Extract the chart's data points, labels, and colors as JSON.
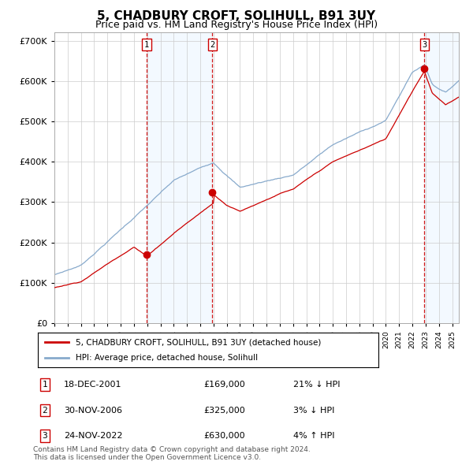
{
  "title": "5, CHADBURY CROFT, SOLIHULL, B91 3UY",
  "subtitle": "Price paid vs. HM Land Registry's House Price Index (HPI)",
  "ylim": [
    0,
    720000
  ],
  "yticks": [
    0,
    100000,
    200000,
    300000,
    400000,
    500000,
    600000,
    700000
  ],
  "ytick_labels": [
    "£0",
    "£100K",
    "£200K",
    "£300K",
    "£400K",
    "£500K",
    "£600K",
    "£700K"
  ],
  "sale_prices": [
    169000,
    325000,
    630000
  ],
  "sale_labels": [
    "1",
    "2",
    "3"
  ],
  "sale_date_strs": [
    "18-DEC-2001",
    "30-NOV-2006",
    "24-NOV-2022"
  ],
  "sale_hpi_pct": [
    "21% ↓ HPI",
    "3% ↓ HPI",
    "4% ↑ HPI"
  ],
  "sale_years": [
    2001.96,
    2006.92,
    2022.9
  ],
  "legend_entries": [
    "5, CHADBURY CROFT, SOLIHULL, B91 3UY (detached house)",
    "HPI: Average price, detached house, Solihull"
  ],
  "footer": "Contains HM Land Registry data © Crown copyright and database right 2024.\nThis data is licensed under the Open Government Licence v3.0.",
  "line_color_red": "#cc0000",
  "line_color_blue": "#88aacc",
  "shade_color": "#ddeeff",
  "grid_color": "#cccccc",
  "sale_marker_color": "#cc0000",
  "vline_color": "#cc0000",
  "box_edge_color": "#cc0000",
  "title_fontsize": 11,
  "subtitle_fontsize": 9,
  "axis_fontsize": 8
}
